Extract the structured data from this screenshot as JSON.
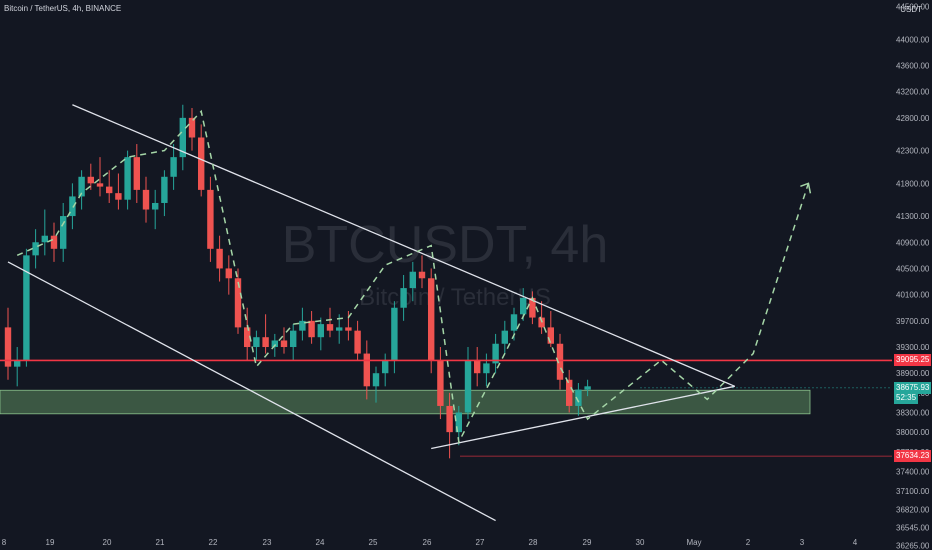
{
  "header": {
    "symbol_title": "Bitcoin / TetherUS, 4h, BINANCE"
  },
  "axis": {
    "unit": "USDT"
  },
  "watermark": {
    "main": "BTCUSDT, 4h",
    "sub": "Bitcoin / TetherUS"
  },
  "colors": {
    "background": "#131722",
    "up": "#26a69a",
    "down": "#ef5350",
    "level_line": "#f23645",
    "zone": "#5d8c5f",
    "trendline": "#e0e3eb",
    "path": "#a5d6a7",
    "axis_text": "#b2b5be"
  },
  "price_badges": {
    "level": "39095.25",
    "last": "38675.93",
    "countdown": "52:35",
    "low": "37634.23"
  },
  "chart_data": {
    "type": "candlestick",
    "ylim": [
      36200,
      44600
    ],
    "y_ticks": [
      "36265.00",
      "36545.00",
      "36820.00",
      "37100.00",
      "37400.00",
      "37700.00",
      "38000.00",
      "38300.00",
      "38600.00",
      "38900.00",
      "39300.00",
      "39700.00",
      "40100.00",
      "40500.00",
      "40900.00",
      "41300.00",
      "41800.00",
      "42300.00",
      "42800.00",
      "43200.00",
      "43600.00",
      "44000.00",
      "44500.00"
    ],
    "x_ticks": [
      "8",
      "19",
      "20",
      "21",
      "22",
      "23",
      "24",
      "25",
      "26",
      "27",
      "28",
      "29",
      "30",
      "May",
      "2",
      "3",
      "4"
    ],
    "level": 39095.25,
    "zone": [
      38280,
      38640
    ],
    "lowline": 37634.23,
    "candles": [
      [
        39600,
        39900,
        38800,
        39000
      ],
      [
        39000,
        39300,
        38700,
        39100
      ],
      [
        39100,
        40800,
        39000,
        40700
      ],
      [
        40700,
        41100,
        40500,
        40900
      ],
      [
        40900,
        41400,
        40700,
        41000
      ],
      [
        41000,
        41200,
        40600,
        40800
      ],
      [
        40800,
        41500,
        40600,
        41300
      ],
      [
        41300,
        41800,
        41100,
        41600
      ],
      [
        41600,
        42000,
        41400,
        41900
      ],
      [
        41900,
        42100,
        41700,
        41800
      ],
      [
        41800,
        42200,
        41600,
        41750
      ],
      [
        41750,
        42000,
        41500,
        41650
      ],
      [
        41650,
        41950,
        41400,
        41550
      ],
      [
        41550,
        42300,
        41400,
        42200
      ],
      [
        42200,
        42400,
        41500,
        41700
      ],
      [
        41700,
        41900,
        41200,
        41400
      ],
      [
        41400,
        41700,
        41100,
        41500
      ],
      [
        41500,
        42000,
        41300,
        41900
      ],
      [
        41900,
        42400,
        41700,
        42200
      ],
      [
        42200,
        43000,
        42000,
        42800
      ],
      [
        42800,
        42950,
        42300,
        42500
      ],
      [
        42500,
        42700,
        41600,
        41700
      ],
      [
        41700,
        41900,
        40600,
        40800
      ],
      [
        40800,
        41000,
        40300,
        40500
      ],
      [
        40500,
        40700,
        40100,
        40350
      ],
      [
        40350,
        40500,
        39500,
        39600
      ],
      [
        39600,
        39900,
        39100,
        39300
      ],
      [
        39300,
        39550,
        39100,
        39450
      ],
      [
        39450,
        39800,
        39200,
        39300
      ],
      [
        39300,
        39500,
        39150,
        39400
      ],
      [
        39400,
        39600,
        39200,
        39300
      ],
      [
        39300,
        39650,
        39100,
        39550
      ],
      [
        39550,
        39900,
        39400,
        39700
      ],
      [
        39700,
        39850,
        39350,
        39450
      ],
      [
        39450,
        39750,
        39250,
        39650
      ],
      [
        39650,
        39900,
        39450,
        39550
      ],
      [
        39550,
        39800,
        39350,
        39600
      ],
      [
        39600,
        39850,
        39400,
        39550
      ],
      [
        39550,
        39700,
        39100,
        39200
      ],
      [
        39200,
        39400,
        38500,
        38700
      ],
      [
        38700,
        39000,
        38450,
        38900
      ],
      [
        38900,
        39200,
        38700,
        39100
      ],
      [
        39100,
        40000,
        38900,
        39900
      ],
      [
        39900,
        40400,
        39700,
        40200
      ],
      [
        40200,
        40600,
        40000,
        40450
      ],
      [
        40450,
        40700,
        40200,
        40350
      ],
      [
        40350,
        40500,
        38900,
        39100
      ],
      [
        39100,
        39300,
        38200,
        38400
      ],
      [
        38400,
        38600,
        37600,
        38000
      ],
      [
        38000,
        38400,
        37800,
        38300
      ],
      [
        38300,
        39300,
        38200,
        39100
      ],
      [
        39100,
        39300,
        38700,
        38900
      ],
      [
        38900,
        39200,
        38700,
        39050
      ],
      [
        39050,
        39500,
        38900,
        39350
      ],
      [
        39350,
        39700,
        39200,
        39550
      ],
      [
        39550,
        39900,
        39400,
        39800
      ],
      [
        39800,
        40200,
        39700,
        40050
      ],
      [
        40050,
        40150,
        39650,
        39750
      ],
      [
        39750,
        40000,
        39500,
        39600
      ],
      [
        39600,
        39850,
        39300,
        39350
      ],
      [
        39350,
        39500,
        38650,
        38800
      ],
      [
        38800,
        38950,
        38300,
        38400
      ],
      [
        38400,
        38750,
        38250,
        38650
      ],
      [
        38650,
        38800,
        38550,
        38700
      ]
    ],
    "path": [
      [
        1,
        40700
      ],
      [
        5,
        40950
      ],
      [
        8,
        41650
      ],
      [
        13,
        42200
      ],
      [
        17,
        42300
      ],
      [
        21,
        42900
      ],
      [
        25,
        40300
      ],
      [
        27,
        39000
      ],
      [
        31,
        39650
      ],
      [
        37,
        39750
      ],
      [
        41,
        40550
      ],
      [
        46,
        40850
      ],
      [
        49,
        37850
      ],
      [
        54,
        39200
      ],
      [
        57,
        40050
      ],
      [
        60,
        39000
      ],
      [
        63,
        38200
      ],
      [
        71,
        39100
      ],
      [
        76,
        38500
      ],
      [
        81,
        39200
      ],
      [
        87,
        41800
      ]
    ],
    "channel_upper": [
      [
        7,
        43000
      ],
      [
        79,
        38700
      ]
    ],
    "channel_lower": [
      [
        0,
        40600
      ],
      [
        53,
        36650
      ]
    ],
    "support": [
      [
        46,
        37750
      ],
      [
        79,
        38700
      ]
    ],
    "candle_x0": 8,
    "candle_dx": 9.2
  }
}
